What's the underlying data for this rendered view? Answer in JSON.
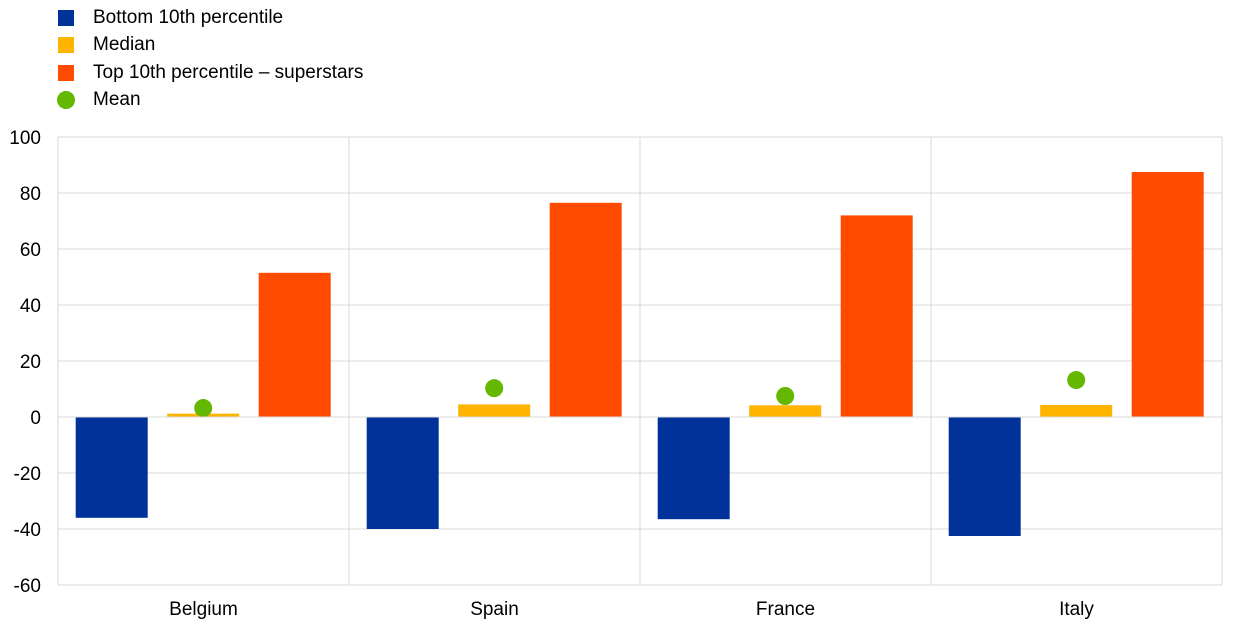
{
  "chart_data": {
    "type": "bar",
    "categories": [
      "Belgium",
      "Spain",
      "France",
      "Italy"
    ],
    "series": [
      {
        "name": "Bottom 10th percentile",
        "kind": "bar",
        "color": "#003299",
        "values": [
          -36,
          -40,
          -36.5,
          -42.5
        ]
      },
      {
        "name": "Median",
        "kind": "bar",
        "color": "#FFB400",
        "values": [
          1.2,
          4.5,
          4.2,
          4.3
        ]
      },
      {
        "name": "Top 10th percentile – superstars",
        "kind": "bar",
        "color": "#FF4B00",
        "values": [
          51.5,
          76.5,
          72,
          87.5
        ]
      },
      {
        "name": "Mean",
        "kind": "dot",
        "color": "#65B800",
        "values": [
          3.2,
          10.3,
          7.5,
          13.2
        ]
      }
    ],
    "ylim": [
      -60,
      100
    ],
    "yticks": [
      "100",
      "80",
      "60",
      "40",
      "20",
      "0",
      "-20",
      "-40",
      "-60"
    ],
    "ytick_values": [
      100,
      80,
      60,
      40,
      20,
      0,
      -20,
      -40,
      -60
    ],
    "grid": true,
    "legend_position": "top-left",
    "title": "",
    "xlabel": "",
    "ylabel": ""
  }
}
